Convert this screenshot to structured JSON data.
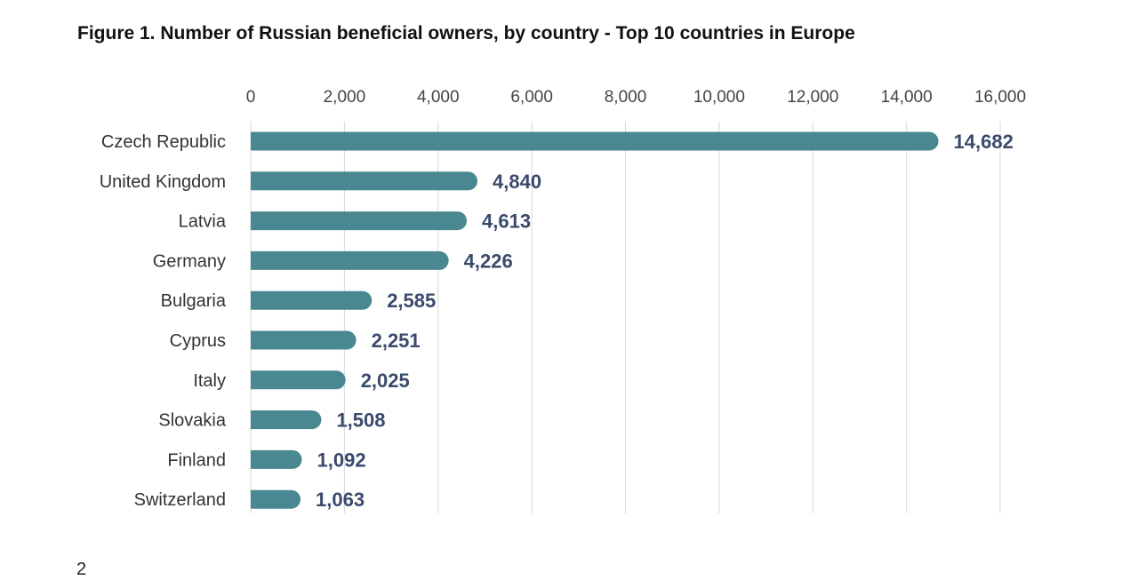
{
  "title": "Figure 1. Number of Russian beneficial owners, by country - Top 10 countries in Europe",
  "page_number": "2",
  "chart_data": {
    "type": "bar",
    "orientation": "horizontal",
    "title": "Figure 1. Number of Russian beneficial owners, by country - Top 10 countries in Europe",
    "xlabel": "",
    "ylabel": "",
    "xlim": [
      0,
      16000
    ],
    "ticks": [
      0,
      2000,
      4000,
      6000,
      8000,
      10000,
      12000,
      14000,
      16000
    ],
    "tick_labels": [
      "0",
      "2,000",
      "4,000",
      "6,000",
      "8,000",
      "10,000",
      "12,000",
      "14,000",
      "16,000"
    ],
    "categories": [
      "Czech Republic",
      "United Kingdom",
      "Latvia",
      "Germany",
      "Bulgaria",
      "Cyprus",
      "Italy",
      "Slovakia",
      "Finland",
      "Switzerland"
    ],
    "values": [
      14682,
      4840,
      4613,
      4226,
      2585,
      2251,
      2025,
      1508,
      1092,
      1063
    ],
    "value_labels": [
      "14,682",
      "4,840",
      "4,613",
      "4,226",
      "2,585",
      "2,251",
      "2,025",
      "1,508",
      "1,092",
      "1,063"
    ],
    "grid": true,
    "axis_position": "top",
    "bar_color": "#4a8891",
    "label_color": "#3a4a6b",
    "grid_color": "#d9d9d9"
  }
}
